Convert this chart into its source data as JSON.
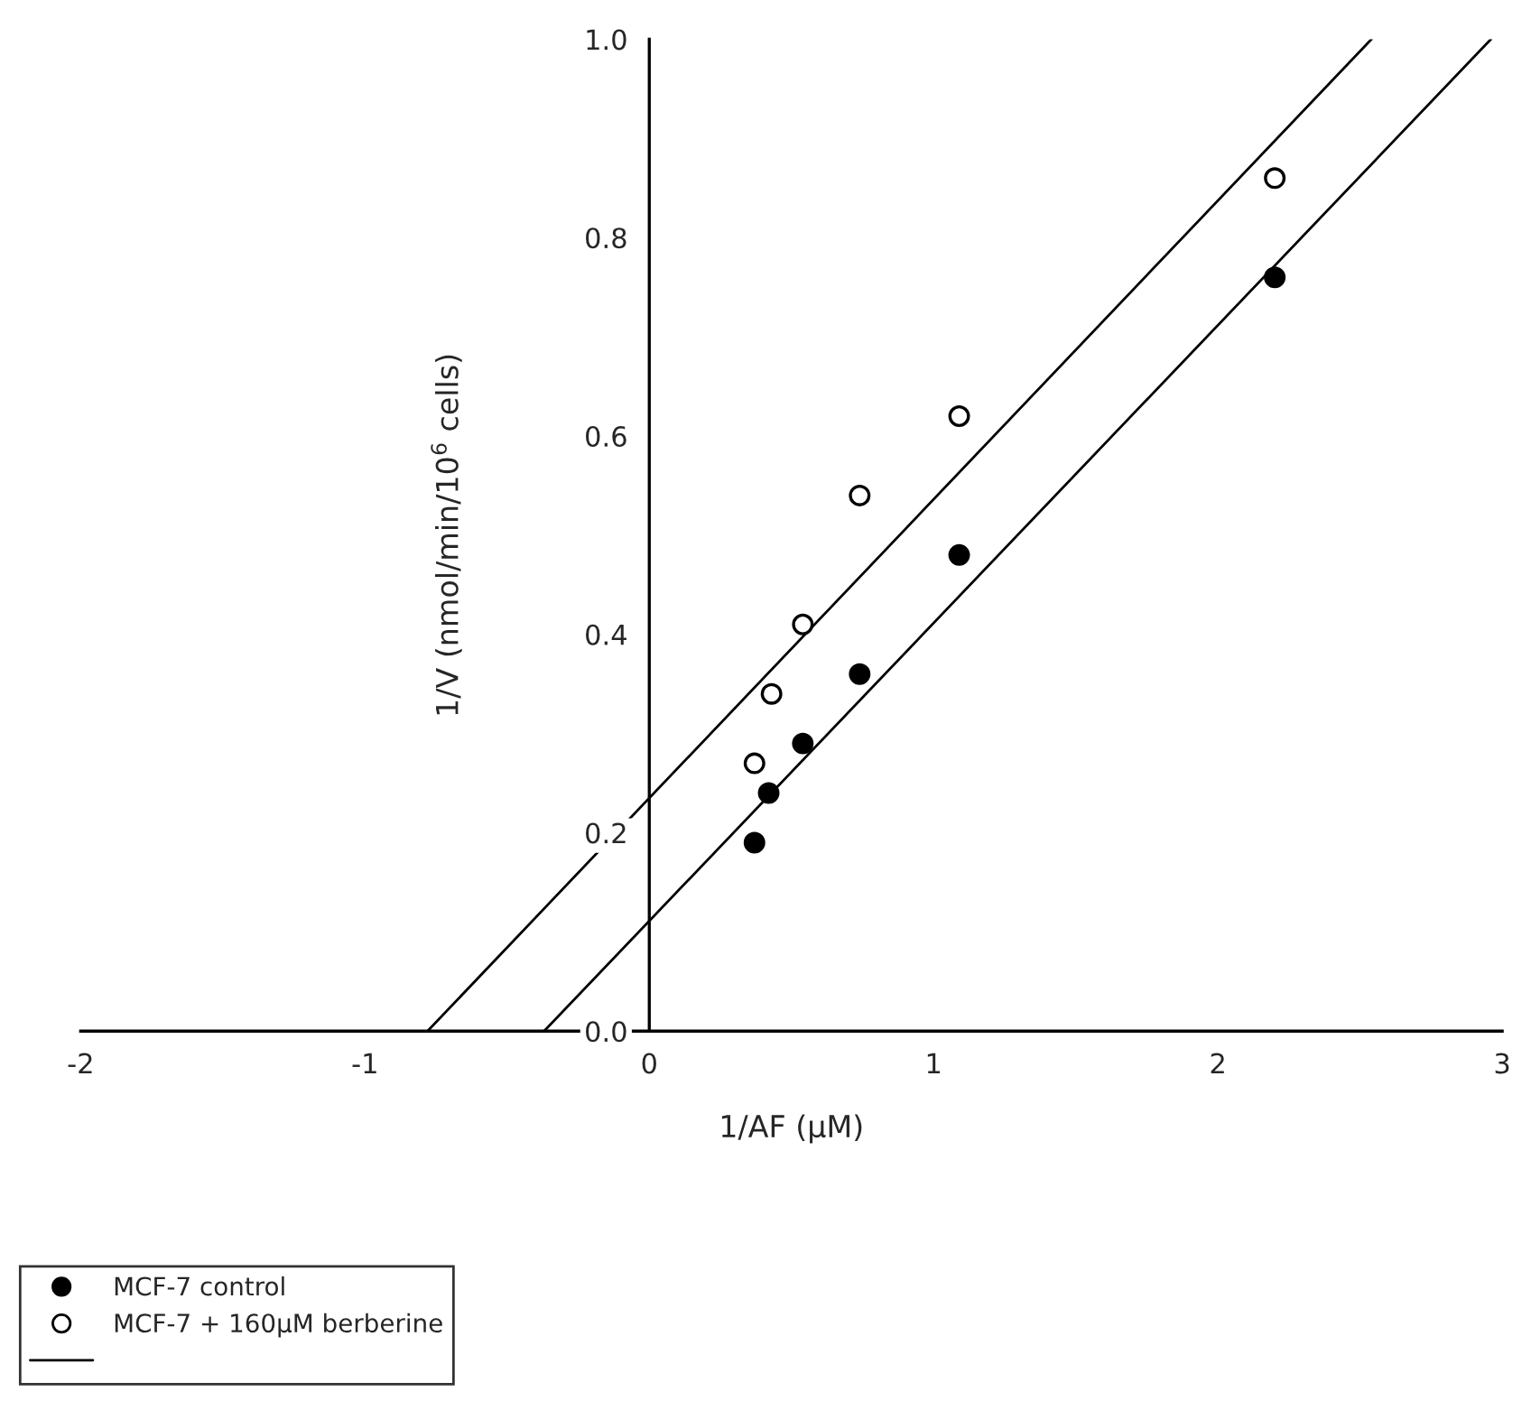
{
  "chart_data": {
    "type": "scatter",
    "xlabel": "1/AF (μM)",
    "ylabel": "1/V (nmol/min/10$^{6}$ cells)",
    "xlim": [
      -2,
      3
    ],
    "xticks": [
      -2,
      -1,
      0,
      1,
      2,
      3
    ],
    "ylim": [
      0,
      1.0
    ],
    "yticks": [
      {
        "value": 0,
        "label": "0.0"
      },
      {
        "value": 0.2,
        "label": "0.2"
      },
      {
        "value": 0.4,
        "label": "0.4"
      },
      {
        "value": 0.6,
        "label": "0.6"
      },
      {
        "value": 0.8,
        "label": "0.8"
      },
      {
        "value": 1.0,
        "label": "1.0"
      }
    ],
    "grid": false,
    "legend": "bottom left",
    "series": [
      {
        "name": "MCF-7 control",
        "marker": "circle",
        "color": "#000000",
        "x": [
          0.37,
          0.42,
          0.54,
          0.74,
          1.09,
          2.2
        ],
        "values": [
          0.19,
          0.24,
          0.29,
          0.36,
          0.48,
          0.76
        ]
      },
      {
        "name": "MCF-7 + 160μM berberine",
        "marker": "circle",
        "color": "#ffffff",
        "x": [
          0.37,
          0.43,
          0.54,
          0.74,
          1.09,
          2.2
        ],
        "values": [
          0.27,
          0.34,
          0.41,
          0.54,
          0.62,
          0.86
        ]
      },
      {
        "type": "line",
        "color": "#000000",
        "line_style": "solid",
        "x": [
          -0.37,
          2.96
        ],
        "values": [
          0,
          1.0
        ]
      },
      {
        "type": "line",
        "color": "#000000",
        "line_style": "solid",
        "x": [
          -0.78,
          2.54
        ],
        "values": [
          0,
          1.0
        ]
      }
    ]
  }
}
